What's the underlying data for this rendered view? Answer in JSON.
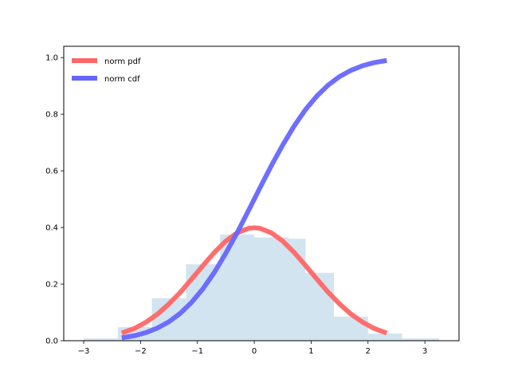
{
  "chart_data": {
    "type": "line",
    "title": "",
    "xlabel": "",
    "ylabel": "",
    "xlim": [
      -3.35,
      3.6
    ],
    "ylim": [
      0,
      1.04
    ],
    "xticks": [
      -3,
      -2,
      -1,
      0,
      1,
      2,
      3
    ],
    "xtick_labels": [
      "−3",
      "−2",
      "−1",
      "0",
      "1",
      "2",
      "3"
    ],
    "yticks": [
      0.0,
      0.2,
      0.4,
      0.6,
      0.8,
      1.0
    ],
    "ytick_labels": [
      "0.0",
      "0.2",
      "0.4",
      "0.6",
      "0.8",
      "1.0"
    ],
    "grid": false,
    "legend": {
      "position": "top-left",
      "entries": [
        {
          "label": "norm pdf",
          "color": "#ff6666"
        },
        {
          "label": "norm cdf",
          "color": "#6666ff"
        }
      ]
    },
    "series": [
      {
        "name": "norm pdf",
        "color": "#ff6666",
        "x": [
          -2.33,
          -2.1,
          -1.9,
          -1.7,
          -1.5,
          -1.3,
          -1.1,
          -0.9,
          -0.7,
          -0.5,
          -0.3,
          -0.1,
          0.0,
          0.1,
          0.3,
          0.5,
          0.7,
          0.9,
          1.1,
          1.3,
          1.5,
          1.7,
          1.9,
          2.1,
          2.33
        ],
        "y": [
          0.027,
          0.044,
          0.066,
          0.094,
          0.13,
          0.171,
          0.218,
          0.266,
          0.312,
          0.352,
          0.381,
          0.397,
          0.399,
          0.397,
          0.381,
          0.352,
          0.312,
          0.266,
          0.218,
          0.171,
          0.13,
          0.094,
          0.066,
          0.044,
          0.027
        ]
      },
      {
        "name": "norm cdf",
        "color": "#6666ff",
        "x": [
          -2.33,
          -2.1,
          -1.9,
          -1.7,
          -1.5,
          -1.3,
          -1.1,
          -0.9,
          -0.7,
          -0.5,
          -0.3,
          -0.1,
          0.0,
          0.1,
          0.3,
          0.5,
          0.7,
          0.9,
          1.1,
          1.3,
          1.5,
          1.7,
          1.9,
          2.1,
          2.33
        ],
        "y": [
          0.01,
          0.018,
          0.029,
          0.045,
          0.067,
          0.097,
          0.136,
          0.184,
          0.242,
          0.309,
          0.382,
          0.46,
          0.5,
          0.54,
          0.618,
          0.691,
          0.758,
          0.816,
          0.864,
          0.903,
          0.933,
          0.955,
          0.971,
          0.982,
          0.99
        ]
      }
    ],
    "histogram": {
      "color": "#1f77b4",
      "opacity": 0.2,
      "bin_edges": [
        -3.0,
        -2.4,
        -1.8,
        -1.2,
        -0.6,
        0.0,
        0.6,
        0.9,
        1.4,
        2.0,
        2.6,
        3.25
      ],
      "values": [
        0.008,
        0.048,
        0.15,
        0.27,
        0.375,
        0.365,
        0.36,
        0.24,
        0.085,
        0.025,
        0.008
      ]
    }
  }
}
